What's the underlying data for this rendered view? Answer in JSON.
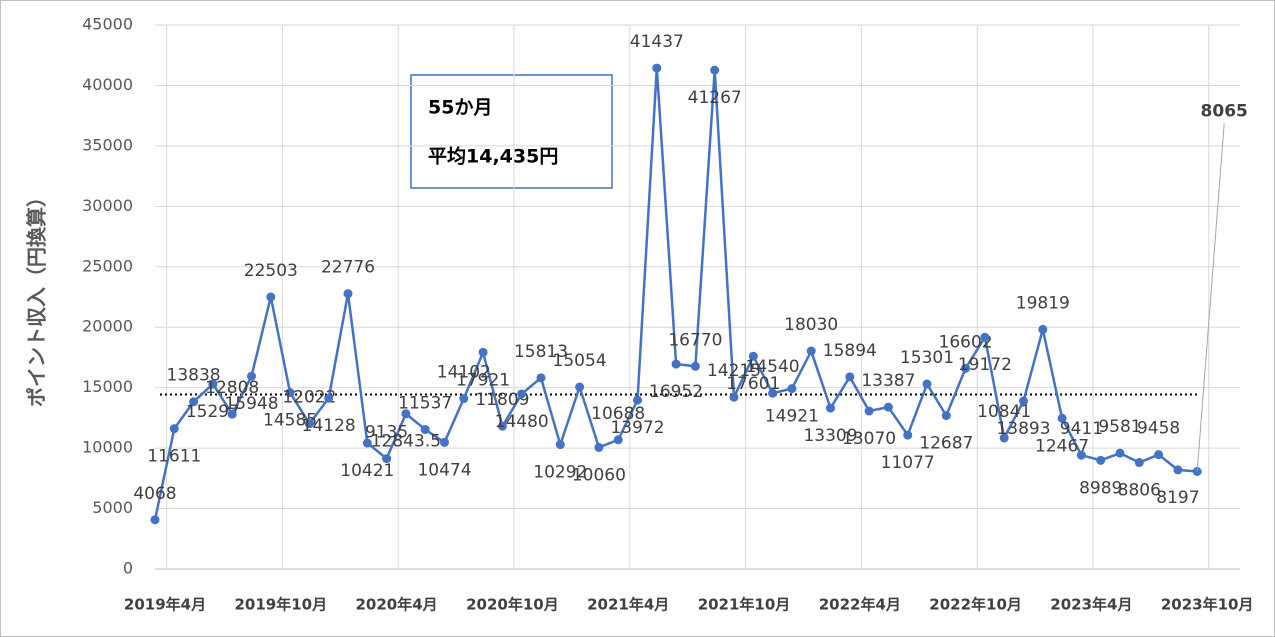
{
  "chart_data": {
    "type": "line",
    "y_label": "ポイント収入（円換算）",
    "annotation": {
      "lines": [
        "55か月",
        "平均14,435円"
      ]
    },
    "average": 14435,
    "categories": [
      "2019年4月",
      null,
      null,
      null,
      null,
      null,
      "2019年10月",
      null,
      null,
      null,
      null,
      null,
      "2020年4月",
      null,
      null,
      null,
      null,
      null,
      "2020年10月",
      null,
      null,
      null,
      null,
      null,
      "2021年4月",
      null,
      null,
      null,
      null,
      null,
      "2021年10月",
      null,
      null,
      null,
      null,
      null,
      "2022年4月",
      null,
      null,
      null,
      null,
      null,
      "2022年10月",
      null,
      null,
      null,
      null,
      null,
      "2023年4月",
      null,
      null,
      null,
      null,
      null,
      "2023年10月"
    ],
    "series": [
      {
        "name": "ポイント収入",
        "color": "#4472c4",
        "values": [
          4068,
          11611,
          13838,
          15297,
          12808,
          15948,
          22503,
          14585,
          12022,
          14128,
          22776,
          10421,
          9135,
          12843.5,
          11537,
          10474,
          14102,
          17921,
          11809,
          14480,
          15813,
          10292,
          15054,
          10060,
          10688,
          13972,
          41437,
          16952,
          16770,
          41267,
          14215,
          17601,
          14540,
          14921,
          18030,
          13309,
          15894,
          13070,
          13387,
          11077,
          15301,
          12687,
          16602,
          19172,
          10841,
          13893,
          19819,
          12467,
          9411,
          8989,
          9581,
          8806,
          9458,
          8197,
          8065
        ]
      }
    ],
    "last_label_color": "#ff0000",
    "ylim": [
      0,
      45000
    ],
    "yticks": [
      0,
      5000,
      10000,
      15000,
      20000,
      25000,
      30000,
      35000,
      40000,
      45000
    ],
    "grid": true
  }
}
